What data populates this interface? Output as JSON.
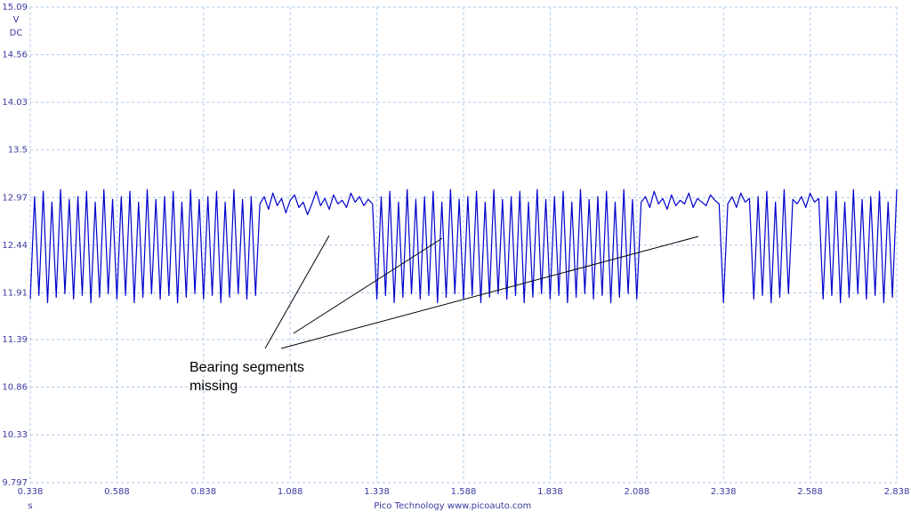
{
  "chart_data": {
    "type": "line",
    "ylabel": "V",
    "coupling": "DC",
    "xlabel": "s",
    "footer": [
      "Pico Technology",
      "www.picoauto.com"
    ],
    "annotation": [
      "Bearing segments",
      "missing"
    ],
    "xlim": [
      0.338,
      2.838
    ],
    "ylim": [
      9.797,
      15.09
    ],
    "xticks": [
      0.338,
      0.588,
      0.838,
      1.088,
      1.338,
      1.588,
      1.838,
      2.088,
      2.338,
      2.588,
      2.838
    ],
    "yticks": [
      9.797,
      10.33,
      10.86,
      11.39,
      11.91,
      12.44,
      12.97,
      13.5,
      14.03,
      14.56,
      15.09
    ],
    "grid": true,
    "x": [
      0.338,
      0.3505,
      0.363,
      0.3755,
      0.388,
      0.4005,
      0.413,
      0.4255,
      0.438,
      0.4505,
      0.463,
      0.4755,
      0.488,
      0.5005,
      0.513,
      0.5255,
      0.538,
      0.5505,
      0.563,
      0.5755,
      0.588,
      0.6005,
      0.613,
      0.6255,
      0.638,
      0.6505,
      0.663,
      0.6755,
      0.688,
      0.7005,
      0.713,
      0.7255,
      0.738,
      0.7505,
      0.763,
      0.7755,
      0.788,
      0.8005,
      0.813,
      0.8255,
      0.838,
      0.8505,
      0.863,
      0.8755,
      0.888,
      0.9005,
      0.913,
      0.9255,
      0.938,
      0.9505,
      0.963,
      0.9755,
      0.988,
      1.0005,
      1.013,
      1.0255,
      1.038,
      1.0505,
      1.063,
      1.0755,
      1.088,
      1.1005,
      1.113,
      1.1255,
      1.138,
      1.1505,
      1.163,
      1.1755,
      1.188,
      1.2005,
      1.213,
      1.2255,
      1.238,
      1.2505,
      1.263,
      1.2755,
      1.288,
      1.3005,
      1.313,
      1.3255,
      1.338,
      1.3505,
      1.363,
      1.3755,
      1.388,
      1.4005,
      1.413,
      1.4255,
      1.438,
      1.4505,
      1.463,
      1.4755,
      1.488,
      1.5005,
      1.513,
      1.5255,
      1.538,
      1.5505,
      1.563,
      1.5755,
      1.588,
      1.6005,
      1.613,
      1.6255,
      1.638,
      1.6505,
      1.663,
      1.6755,
      1.688,
      1.7005,
      1.713,
      1.7255,
      1.738,
      1.7505,
      1.763,
      1.7755,
      1.788,
      1.8005,
      1.813,
      1.8255,
      1.838,
      1.8505,
      1.863,
      1.8755,
      1.888,
      1.9005,
      1.913,
      1.9255,
      1.938,
      1.9505,
      1.963,
      1.9755,
      1.988,
      2.0005,
      2.013,
      2.0255,
      2.038,
      2.0505,
      2.063,
      2.0755,
      2.088,
      2.1005,
      2.113,
      2.1255,
      2.138,
      2.1505,
      2.163,
      2.1755,
      2.188,
      2.2005,
      2.213,
      2.2255,
      2.238,
      2.2505,
      2.263,
      2.2755,
      2.288,
      2.3005,
      2.313,
      2.3255,
      2.338,
      2.3505,
      2.363,
      2.3755,
      2.388,
      2.4005,
      2.413,
      2.4255,
      2.438,
      2.4505,
      2.463,
      2.4755,
      2.488,
      2.5005,
      2.513,
      2.5255,
      2.538,
      2.5505,
      2.563,
      2.5755,
      2.588,
      2.6005,
      2.613,
      2.6255,
      2.638,
      2.6505,
      2.663,
      2.6755,
      2.688,
      2.7005,
      2.713,
      2.7255,
      2.738,
      2.7505,
      2.763,
      2.7755,
      2.788,
      2.8005,
      2.813,
      2.8255,
      2.838
    ],
    "series": [
      {
        "color": "#0000cc",
        "values": [
          11.84,
          12.98,
          11.88,
          13.04,
          11.8,
          12.92,
          11.86,
          13.06,
          11.9,
          12.95,
          11.84,
          12.98,
          11.88,
          13.04,
          11.8,
          12.92,
          11.86,
          13.06,
          11.9,
          12.95,
          11.84,
          12.98,
          11.88,
          13.04,
          11.8,
          12.92,
          11.86,
          13.06,
          11.9,
          12.95,
          11.84,
          12.98,
          11.88,
          13.04,
          11.8,
          12.92,
          11.86,
          13.06,
          11.9,
          12.95,
          11.84,
          12.98,
          11.88,
          13.04,
          11.8,
          12.92,
          11.86,
          13.06,
          11.9,
          12.95,
          11.84,
          12.98,
          11.88,
          12.9,
          12.98,
          12.84,
          13.02,
          12.88,
          12.96,
          12.8,
          12.94,
          13.0,
          12.86,
          12.92,
          12.78,
          12.9,
          13.04,
          12.88,
          12.96,
          12.84,
          13.0,
          12.9,
          12.94,
          12.86,
          13.02,
          12.92,
          12.98,
          12.88,
          12.95,
          12.9,
          11.84,
          12.98,
          11.88,
          13.04,
          11.8,
          12.92,
          11.86,
          13.06,
          11.9,
          12.95,
          11.84,
          12.98,
          11.88,
          13.04,
          11.8,
          12.92,
          11.86,
          13.06,
          11.9,
          12.95,
          11.84,
          12.98,
          11.88,
          13.04,
          11.8,
          12.92,
          11.86,
          13.06,
          11.9,
          12.95,
          11.84,
          12.98,
          11.88,
          13.04,
          11.8,
          12.92,
          11.86,
          13.06,
          11.9,
          12.95,
          11.84,
          12.98,
          11.88,
          13.04,
          11.8,
          12.92,
          11.86,
          13.06,
          11.9,
          12.95,
          11.84,
          12.98,
          11.88,
          13.04,
          11.8,
          12.92,
          11.86,
          13.06,
          11.9,
          12.95,
          11.84,
          12.92,
          12.98,
          12.86,
          13.04,
          12.9,
          12.96,
          12.84,
          13.0,
          12.88,
          12.94,
          12.9,
          13.02,
          12.86,
          12.96,
          12.92,
          12.88,
          13.0,
          12.94,
          12.9,
          11.8,
          12.9,
          12.98,
          12.86,
          13.02,
          12.92,
          12.96,
          11.84,
          12.98,
          11.88,
          13.04,
          11.8,
          12.92,
          11.86,
          13.06,
          11.9,
          12.95,
          12.9,
          12.98,
          12.86,
          13.02,
          12.92,
          12.96,
          11.84,
          12.98,
          11.88,
          13.04,
          11.8,
          12.92,
          11.86,
          13.06,
          11.9,
          12.95,
          11.84,
          12.98,
          11.88,
          13.04,
          11.8,
          12.92,
          11.86,
          13.06
        ]
      }
    ]
  }
}
